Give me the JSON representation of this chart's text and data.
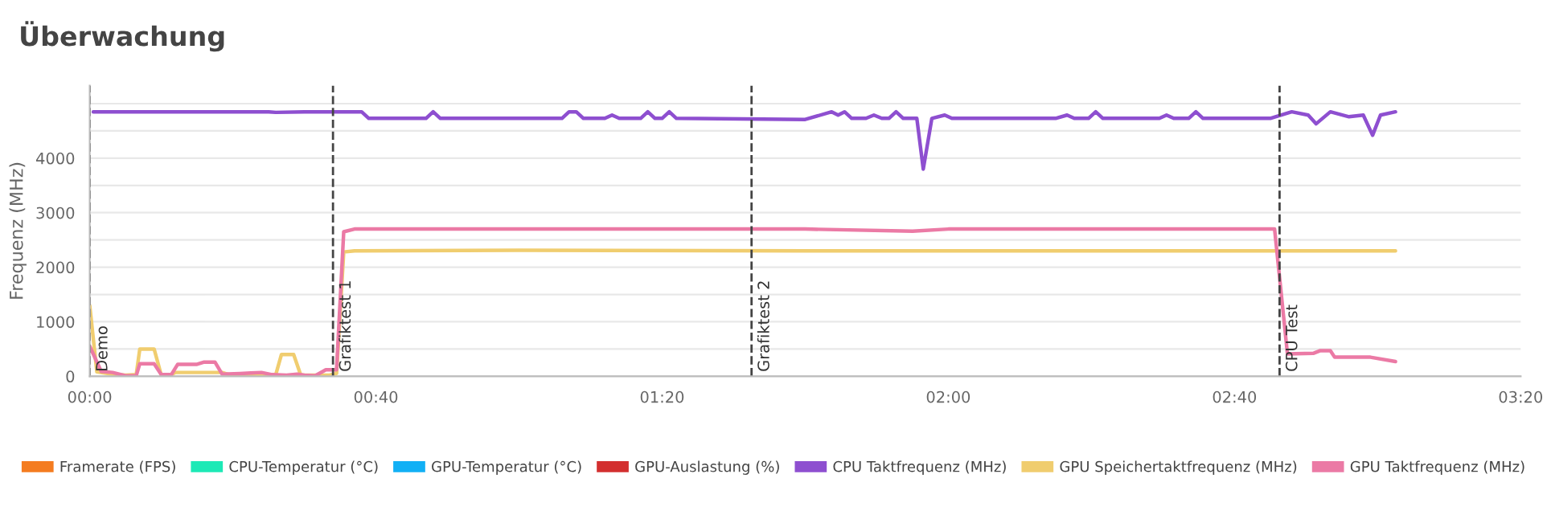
{
  "chart_data": {
    "type": "line",
    "title": "Überwachung",
    "ylabel": "Frequenz (MHz)",
    "xlim": [
      0,
      200
    ],
    "xticks": [
      {
        "value": 0,
        "label": "00:00"
      },
      {
        "value": 40,
        "label": "00:40"
      },
      {
        "value": 80,
        "label": "01:20"
      },
      {
        "value": 120,
        "label": "02:00"
      },
      {
        "value": 160,
        "label": "02:40"
      },
      {
        "value": 200,
        "label": "03:20"
      }
    ],
    "ylim": [
      0,
      5330
    ],
    "yticks": [
      0,
      {
        "value": 500,
        "label": null
      },
      1000,
      {
        "value": 1500,
        "label": null
      },
      2000,
      {
        "value": 2500,
        "label": null
      },
      3000,
      {
        "value": 3500,
        "label": null
      },
      4000,
      {
        "value": 4500,
        "label": null
      },
      {
        "value": 5000,
        "label": null
      }
    ],
    "grid": "y",
    "legend": "bottom",
    "marker": "none",
    "line_style": "solid",
    "ref_lines": [
      {
        "axis": "x",
        "value": 0,
        "label": "Demo",
        "color": "#444444",
        "line_style": "dashed"
      },
      {
        "axis": "x",
        "value": 34,
        "label": "Grafiktest 1",
        "color": "#444444",
        "line_style": "dashed"
      },
      {
        "axis": "x",
        "value": 92.5,
        "label": "Grafiktest 2",
        "color": "#444444",
        "line_style": "dashed"
      },
      {
        "axis": "x",
        "value": 166.3,
        "label": "CPU Test",
        "color": "#444444",
        "line_style": "dashed"
      }
    ],
    "series": [
      {
        "name": "Framerate (FPS)",
        "color": "#f47c20"
      },
      {
        "name": "CPU-Temperatur (°C)",
        "color": "#1de9b6"
      },
      {
        "name": "GPU-Temperatur (°C)",
        "color": "#12b0f5"
      },
      {
        "name": "GPU-Auslastung (%)",
        "color": "#d32f2f"
      },
      {
        "name": "CPU Taktfrequenz (MHz)",
        "color": "#8e4fd0",
        "x": [
          0.5,
          25,
          26,
          30,
          38,
          39,
          47,
          48,
          49,
          66,
          67,
          68,
          69,
          72,
          73,
          74,
          77,
          78,
          79,
          80,
          81,
          82,
          100,
          103.7,
          104.6,
          105.5,
          106.5,
          108.5,
          109.6,
          110.7,
          111.7,
          112.7,
          113.7,
          115.6,
          116.5,
          117.7,
          119.5,
          120.5,
          135,
          136.6,
          137.6,
          139.6,
          140.6,
          141.6,
          149.5,
          150.5,
          151.5,
          153.6,
          154.6,
          155.6,
          165,
          168,
          170.3,
          171.4,
          173.4,
          176,
          178,
          179.3,
          180.4,
          182.5
        ],
        "values": [
          4850,
          4850,
          4840,
          4850,
          4850,
          4730,
          4730,
          4850,
          4730,
          4730,
          4850,
          4850,
          4730,
          4730,
          4790,
          4730,
          4730,
          4850,
          4730,
          4730,
          4850,
          4730,
          4710,
          4850,
          4790,
          4850,
          4730,
          4730,
          4790,
          4730,
          4730,
          4850,
          4730,
          4730,
          3800,
          4730,
          4790,
          4730,
          4730,
          4790,
          4730,
          4730,
          4850,
          4730,
          4730,
          4790,
          4730,
          4730,
          4850,
          4730,
          4730,
          4850,
          4790,
          4630,
          4850,
          4760,
          4790,
          4420,
          4790,
          4850
        ]
      },
      {
        "name": "GPU Speichertaktfrequenz (MHz)",
        "color": "#f0cd6f",
        "x": [
          0,
          1,
          3,
          5,
          6.5,
          7,
          9,
          10,
          11.4,
          12,
          18.5,
          19.5,
          26,
          26.8,
          28.5,
          29.5,
          33.5,
          34.5,
          35.5,
          37,
          60,
          100,
          150,
          182.5
        ],
        "values": [
          1300,
          80,
          40,
          20,
          30,
          500,
          500,
          20,
          30,
          70,
          70,
          30,
          30,
          400,
          400,
          20,
          20,
          50,
          2280,
          2300,
          2310,
          2300,
          2300,
          2300
        ]
      },
      {
        "name": "GPU Taktfrequenz (MHz)",
        "color": "#eb7aa5",
        "x": [
          0,
          1.6,
          3.2,
          5,
          6.5,
          7,
          9,
          10,
          11.4,
          12.3,
          15,
          16,
          17.5,
          18.5,
          21,
          22.5,
          24,
          25.5,
          27.5,
          29,
          30,
          31.5,
          33,
          34.5,
          35.5,
          37,
          60,
          100,
          115,
          120,
          165.6,
          167.4,
          171,
          172,
          173.4,
          174,
          179,
          182.5
        ],
        "values": [
          550,
          90,
          70,
          10,
          10,
          230,
          230,
          30,
          30,
          220,
          220,
          260,
          260,
          40,
          50,
          60,
          70,
          30,
          20,
          40,
          20,
          10,
          120,
          120,
          2650,
          2700,
          2700,
          2700,
          2660,
          2700,
          2700,
          410,
          420,
          470,
          470,
          350,
          350,
          270
        ]
      }
    ]
  }
}
